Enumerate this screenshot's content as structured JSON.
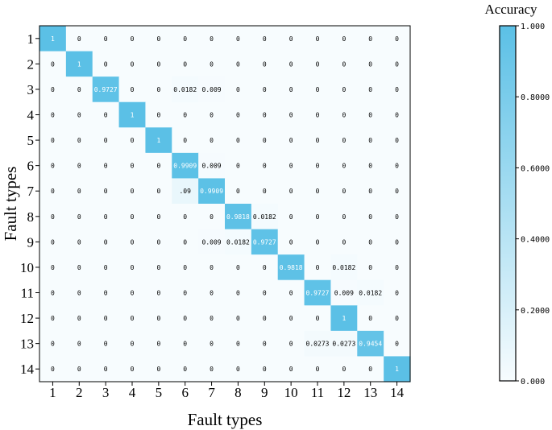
{
  "chart_data": {
    "type": "heatmap",
    "xlabel": "Fault types",
    "ylabel": "Fault types",
    "x_categories": [
      "1",
      "2",
      "3",
      "4",
      "5",
      "6",
      "7",
      "8",
      "9",
      "10",
      "11",
      "12",
      "13",
      "14"
    ],
    "y_categories": [
      "1",
      "2",
      "3",
      "4",
      "5",
      "6",
      "7",
      "8",
      "9",
      "10",
      "11",
      "12",
      "13",
      "14"
    ],
    "values": [
      [
        "1",
        "0",
        "0",
        "0",
        "0",
        "0",
        "0",
        "0",
        "0",
        "0",
        "0",
        "0",
        "0",
        "0"
      ],
      [
        "0",
        "1",
        "0",
        "0",
        "0",
        "0",
        "0",
        "0",
        "0",
        "0",
        "0",
        "0",
        "0",
        "0"
      ],
      [
        "0",
        "0",
        "0.9727",
        "0",
        "0",
        "0.0182",
        "0.009",
        "0",
        "0",
        "0",
        "0",
        "0",
        "0",
        "0"
      ],
      [
        "0",
        "0",
        "0",
        "1",
        "0",
        "0",
        "0",
        "0",
        "0",
        "0",
        "0",
        "0",
        "0",
        "0"
      ],
      [
        "0",
        "0",
        "0",
        "0",
        "1",
        "0",
        "0",
        "0",
        "0",
        "0",
        "0",
        "0",
        "0",
        "0"
      ],
      [
        "0",
        "0",
        "0",
        "0",
        "0",
        "0.9909",
        "0.009",
        "0",
        "0",
        "0",
        "0",
        "0",
        "0",
        "0"
      ],
      [
        "0",
        "0",
        "0",
        "0",
        "0",
        ".09",
        "0.9909",
        "0",
        "0",
        "0",
        "0",
        "0",
        "0",
        "0"
      ],
      [
        "0",
        "0",
        "0",
        "0",
        "0",
        "0",
        "0",
        "0.9818",
        "0.0182",
        "0",
        "0",
        "0",
        "0",
        "0"
      ],
      [
        "0",
        "0",
        "0",
        "0",
        "0",
        "0",
        "0.009",
        "0.0182",
        "0.9727",
        "0",
        "0",
        "0",
        "0",
        "0"
      ],
      [
        "0",
        "0",
        "0",
        "0",
        "0",
        "0",
        "0",
        "0",
        "0",
        "0.9818",
        "0",
        "0.0182",
        "0",
        "0"
      ],
      [
        "0",
        "0",
        "0",
        "0",
        "0",
        "0",
        "0",
        "0",
        "0",
        "0",
        "0.9727",
        "0.009",
        "0.0182",
        "0"
      ],
      [
        "0",
        "0",
        "0",
        "0",
        "0",
        "0",
        "0",
        "0",
        "0",
        "0",
        "0",
        "1",
        "0",
        "0"
      ],
      [
        "0",
        "0",
        "0",
        "0",
        "0",
        "0",
        "0",
        "0",
        "0",
        "0",
        "0.0273",
        "0.0273",
        "0.9454",
        "0"
      ],
      [
        "0",
        "0",
        "0",
        "0",
        "0",
        "0",
        "0",
        "0",
        "0",
        "0",
        "0",
        "0",
        "0",
        "1"
      ]
    ],
    "colorbar": {
      "title": "Accuracy",
      "range": [
        0,
        1
      ],
      "ticks": [
        "0.000",
        "0.2000",
        "0.4000",
        "0.6000",
        "0.8000",
        "1.000"
      ],
      "low_color": "#f7fcfe",
      "high_color": "#5bc0e6"
    }
  }
}
